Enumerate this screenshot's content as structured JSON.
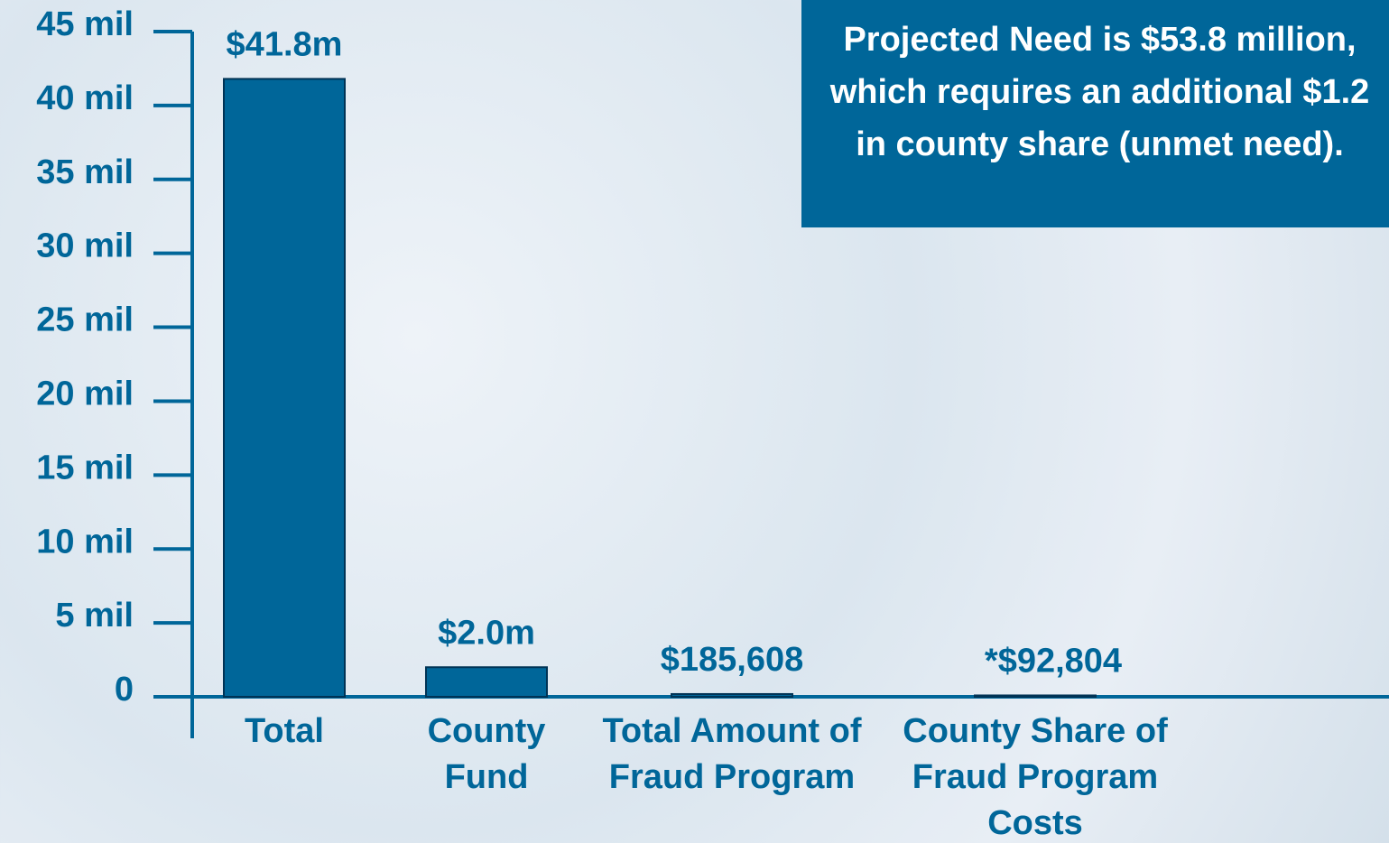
{
  "chart_data": {
    "type": "bar",
    "annotation": "Projected Need is $53.8 million, which requires an additional $1.2 in county share (unmet need).",
    "categories": [
      "Total",
      "County Fund",
      "Total Amount of Fraud Program",
      "County Share of Fraud Program Costs"
    ],
    "values": [
      41800000,
      2000000,
      185608,
      92804
    ],
    "value_labels": [
      "$41.8m",
      "$2.0m",
      "$185,608",
      "*$92,804"
    ],
    "color": "#006699",
    "ylim": [
      0,
      45000000
    ],
    "yticks": [
      0,
      {
        "value": 5000000,
        "label": "5 mil"
      },
      {
        "value": 10000000,
        "label": "10 mil"
      },
      {
        "value": 15000000,
        "label": "15 mil"
      },
      {
        "value": 20000000,
        "label": "20 mil"
      },
      {
        "value": 25000000,
        "label": "25 mil"
      },
      {
        "value": 30000000,
        "label": "30 mil"
      },
      {
        "value": 35000000,
        "label": "35 mil"
      },
      {
        "value": 40000000,
        "label": "40 mil"
      },
      {
        "value": 45000000,
        "label": "45 mil"
      }
    ]
  }
}
